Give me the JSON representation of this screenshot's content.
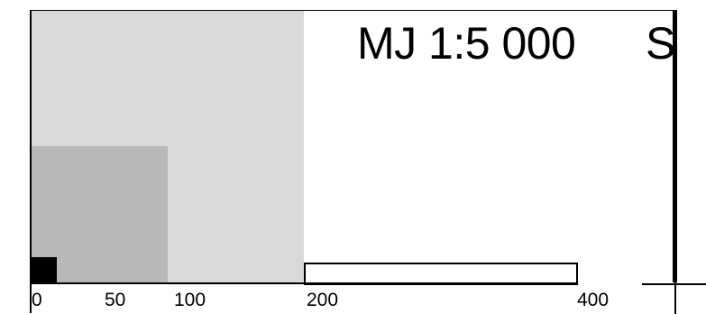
{
  "map": {
    "scale_title": "MJ 1:5 000",
    "north_label": "S",
    "scale_ticks": [
      "0",
      "50",
      "100",
      "200",
      "400"
    ]
  },
  "colors": {
    "square_200": "#d9d9d9",
    "square_100": "#b8b8b8",
    "square_20": "#000000",
    "background": "#ffffff",
    "lines": "#000000"
  }
}
